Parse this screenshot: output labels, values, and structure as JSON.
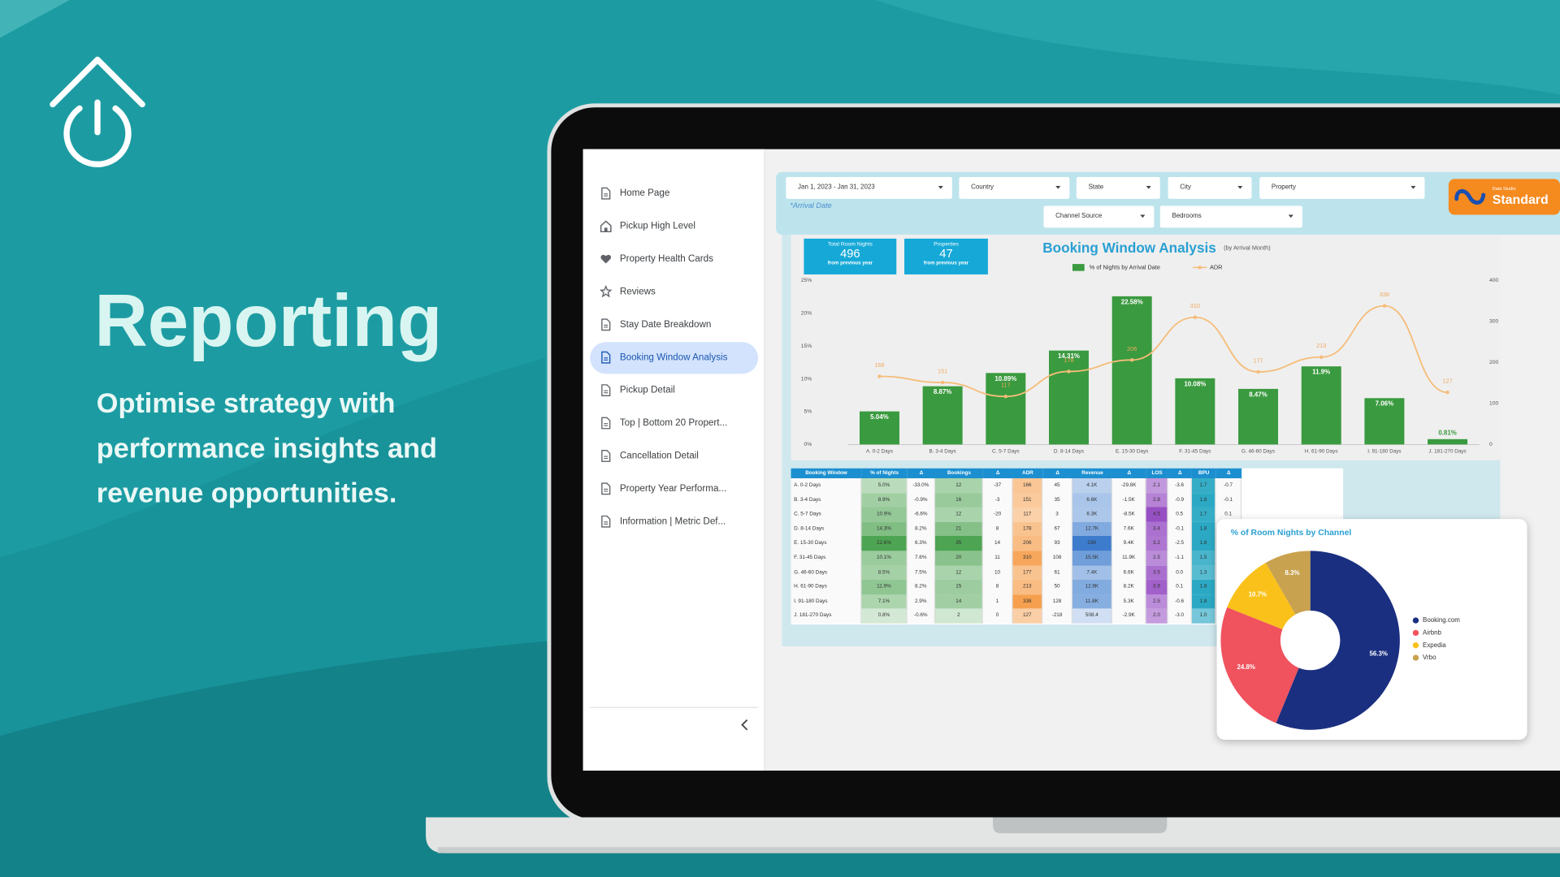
{
  "hero": {
    "title": "Reporting",
    "subtitle": "Optimise strategy with performance insights and revenue opportunities."
  },
  "sidebar": {
    "items": [
      "Home Page",
      "Pickup High Level",
      "Property Health Cards",
      "Reviews",
      "Stay Date Breakdown",
      "Booking Window Analysis",
      "Pickup Detail",
      "Top | Bottom 20 Propert...",
      "Cancellation Detail",
      "Property Year Performa...",
      "Information | Metric Def..."
    ],
    "active": 5
  },
  "filters": {
    "date": "Jan 1, 2023 - Jan 31, 2023",
    "note": "*Arrival Date",
    "dropdowns": [
      "Country",
      "State",
      "City",
      "Property",
      "Channel Source",
      "Bedrooms"
    ]
  },
  "badge": {
    "caption": "Data Studio",
    "label": "Standard"
  },
  "kpis": [
    {
      "label": "Total Room Nights",
      "value": 496,
      "note": "from previous year"
    },
    {
      "label": "Properties",
      "value": 47,
      "note": "from previous year"
    }
  ],
  "chart_data": [
    {
      "type": "bar",
      "title": "Booking Window Analysis",
      "subtitle": "(by Arrival Month)",
      "categories": [
        "A. 0-2 Days",
        "B. 3-4 Days",
        "C. 5-7 Days",
        "D. 8-14 Days",
        "E. 15-30 Days",
        "F. 31-45 Days",
        "G. 46-60 Days",
        "H. 61-90 Days",
        "I. 91-180 Days",
        "J. 181-270 Days"
      ],
      "series": [
        {
          "name": "% of Nights by Arrival Date",
          "color": "#3a9a3f",
          "values": [
            5.04,
            8.87,
            10.89,
            14.31,
            22.58,
            10.08,
            8.47,
            11.9,
            7.06,
            0.81
          ],
          "value_labels": [
            "5.04%",
            "8.87%",
            "10.89%",
            "14.31%",
            "22.58%",
            "10.08%",
            "8.47%",
            "11.9%",
            "7.06%",
            "0.81%"
          ]
        },
        {
          "name": "ADR",
          "type": "line",
          "axis": "y2",
          "color": "#f5bd7a",
          "values": [
            166,
            151,
            117,
            178,
            206,
            310,
            177,
            213,
            338,
            127
          ]
        }
      ],
      "ylim": [
        0,
        25
      ],
      "yticks": [
        {
          "value": 0,
          "label": "0%"
        },
        {
          "value": 5,
          "label": "5%"
        },
        {
          "value": 10,
          "label": "10%"
        },
        {
          "value": 15,
          "label": "15%"
        },
        {
          "value": 20,
          "label": "20%"
        },
        {
          "value": 25,
          "label": "25%"
        }
      ],
      "y2lim": [
        0,
        400
      ],
      "y2ticks": [
        0,
        100,
        200,
        300,
        400
      ],
      "grid": false
    },
    {
      "type": "pie",
      "title": "% of Room Nights by Channel",
      "categories": [
        "Booking.com",
        "Airbnb",
        "Expedia",
        "Vrbo"
      ],
      "values": [
        56.3,
        24.8,
        10.7,
        8.3
      ],
      "value_labels": [
        "56.3%",
        "24.8%",
        "10.7%",
        "8.3%"
      ],
      "colors": [
        "#1a2f80",
        "#f0525e",
        "#f9c11a",
        "#c9a24f"
      ],
      "legend": "right"
    }
  ],
  "table": {
    "columns": [
      "Booking Window",
      "% of Nights",
      "Δ",
      "Bookings",
      "Δ",
      "ADR",
      "Δ",
      "Revenue",
      "Δ",
      "LOS",
      "Δ",
      "BPU",
      "Δ"
    ],
    "rows": [
      [
        "A. 0-2 Days",
        "5.0%",
        "-33.0%",
        "12",
        "-37",
        "166",
        "45",
        "4.1K",
        "-29.8K",
        "2.1",
        "-3.6",
        "1.7",
        "-0.7"
      ],
      [
        "B. 3-4 Days",
        "8.9%",
        "-0.9%",
        "16",
        "-3",
        "151",
        "35",
        "6.6K",
        "-1.5K",
        "2.8",
        "-0.9",
        "1.8",
        "-0.1"
      ],
      [
        "C. 5-7 Days",
        "10.9%",
        "-6.6%",
        "12",
        "-20",
        "117",
        "3",
        "6.3K",
        "-8.5K",
        "4.5",
        "0.5",
        "1.7",
        "0.1"
      ],
      [
        "D. 8-14 Days",
        "14.3%",
        "8.2%",
        "21",
        "8",
        "178",
        "67",
        "12.7K",
        "7.6K",
        "3.4",
        "-0.1",
        "1.8",
        null
      ],
      [
        "E. 15-30 Days",
        "22.6%",
        "6.3%",
        "35",
        "14",
        "206",
        "93",
        "23K",
        "9.4K",
        "3.2",
        "-2.5",
        "1.8",
        null
      ],
      [
        "F. 31-45 Days",
        "10.1%",
        "7.6%",
        "20",
        "11",
        "310",
        "108",
        "15.5K",
        "11.9K",
        "2.5",
        "-1.1",
        "1.5",
        null
      ],
      [
        "G. 46-60 Days",
        "8.5%",
        "7.5%",
        "12",
        "10",
        "177",
        "61",
        "7.4K",
        "6.6K",
        "3.5",
        "0.0",
        "1.3",
        null
      ],
      [
        "H. 61-90 Days",
        "11.9%",
        "8.2%",
        "15",
        "8",
        "213",
        "50",
        "12.6K",
        "8.2K",
        "3.9",
        "0.1",
        "1.8",
        null
      ],
      [
        "I. 91-180 Days",
        "7.1%",
        "2.9%",
        "14",
        "1",
        "338",
        "128",
        "11.8K",
        "5.3K",
        "2.5",
        "-0.6",
        "1.8",
        null
      ],
      [
        "J. 181-270 Days",
        "0.8%",
        "-0.6%",
        "2",
        "0",
        "127",
        "-218",
        "508.4",
        "-2.9K",
        "2.0",
        "-3.0",
        "1.0",
        null
      ]
    ]
  }
}
